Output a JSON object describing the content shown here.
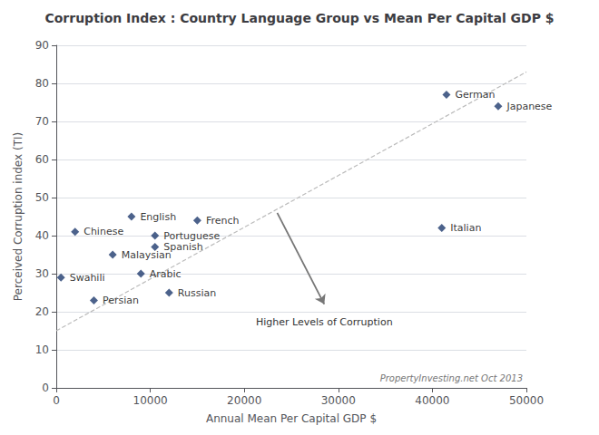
{
  "chart_data": {
    "type": "scatter",
    "title": "Corruption Index : Country Language Group vs Mean Per Capital GDP $",
    "xlabel": "Annual Mean Per Capital GDP $",
    "ylabel": "Perceived Corruption index (TI)",
    "labels": [
      "Swahili",
      "Chinese",
      "Persian",
      "Malaysian",
      "English",
      "Arabic",
      "Portuguese",
      "Spanish",
      "Russian",
      "French",
      "Italian",
      "German",
      "Japanese"
    ],
    "x": [
      500,
      2000,
      4000,
      6000,
      8000,
      9000,
      10500,
      10500,
      12000,
      15000,
      41000,
      41500,
      47000
    ],
    "values": [
      29,
      41,
      23,
      35,
      45,
      30,
      40,
      37,
      25,
      44,
      42,
      77,
      74
    ],
    "color": "#1F3B6E",
    "marker": "diamond",
    "trend_line": {
      "x": [
        0,
        50000
      ],
      "y": [
        15,
        83
      ],
      "color": "#BBBBBB",
      "line_style": "dashed"
    },
    "arrow": {
      "x": [
        23500,
        28500
      ],
      "y": [
        46,
        22
      ],
      "color": "#777777"
    },
    "arrow_label": "Higher Levels of Corruption",
    "annotation": "PropertyInvesting.net Oct 2013",
    "xlim": [
      0,
      50000
    ],
    "ylim": [
      0,
      90
    ],
    "xticks": [
      0,
      10000,
      20000,
      30000,
      40000,
      50000
    ],
    "yticks": [
      0,
      10,
      20,
      30,
      40,
      50,
      60,
      70,
      80,
      90
    ],
    "grid": true
  }
}
